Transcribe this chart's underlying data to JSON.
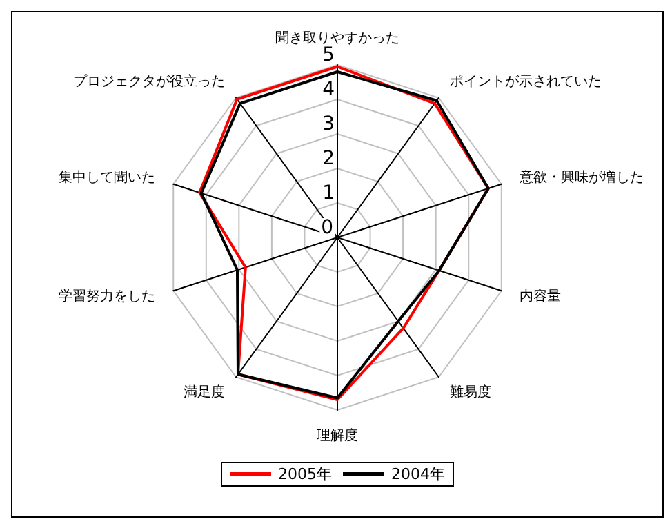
{
  "chart_data": {
    "type": "radar",
    "categories": [
      "聞き取りやすかった",
      "ポイントが示されていた",
      "意欲・興味が増した",
      "内容量",
      "難易度",
      "理解度",
      "満足度",
      "学習努力をした",
      "集中して聞いた",
      "プロジェクタが役立った"
    ],
    "series": [
      {
        "name": "2005年",
        "color": "#ff0000",
        "values": [
          4.95,
          4.8,
          4.6,
          3.1,
          3.25,
          4.7,
          4.9,
          2.8,
          4.2,
          4.95
        ]
      },
      {
        "name": "2004年",
        "color": "#000000",
        "values": [
          4.8,
          4.9,
          4.6,
          3.1,
          3.0,
          4.65,
          4.9,
          3.05,
          4.15,
          4.8
        ]
      }
    ],
    "ylim": [
      0,
      5
    ],
    "yticks": [
      0,
      1,
      2,
      3,
      4,
      5
    ],
    "legend": "bottom",
    "grid": true,
    "marker": "none",
    "line_style": "solid"
  }
}
